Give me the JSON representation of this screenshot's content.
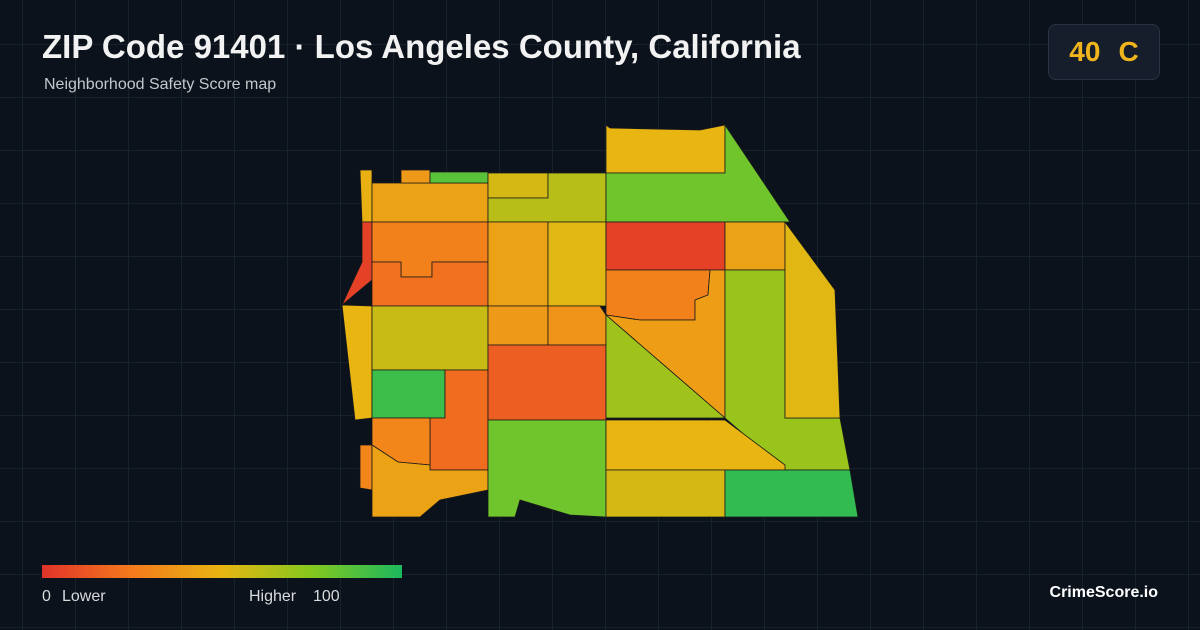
{
  "header": {
    "title": "ZIP Code 91401 · Los Angeles County, California",
    "subtitle": "Neighborhood Safety Score map"
  },
  "badge": {
    "score": "40",
    "grade": "C"
  },
  "map": {
    "scores": [
      48,
      42,
      38,
      85,
      5,
      28,
      22,
      50,
      58,
      92,
      20,
      30,
      30,
      42,
      55,
      62,
      42,
      52,
      38,
      36,
      15,
      80,
      50,
      80,
      5,
      42,
      28,
      40,
      68,
      70,
      52,
      50,
      55,
      95
    ]
  },
  "legend": {
    "min": 0,
    "min_label": "Lower",
    "max_label": "Higher",
    "max": 100,
    "colors": [
      "#e0332a",
      "#f47a1c",
      "#e8b512",
      "#84c81e",
      "#1cb85e"
    ]
  },
  "brand": "CrimeScore.io"
}
